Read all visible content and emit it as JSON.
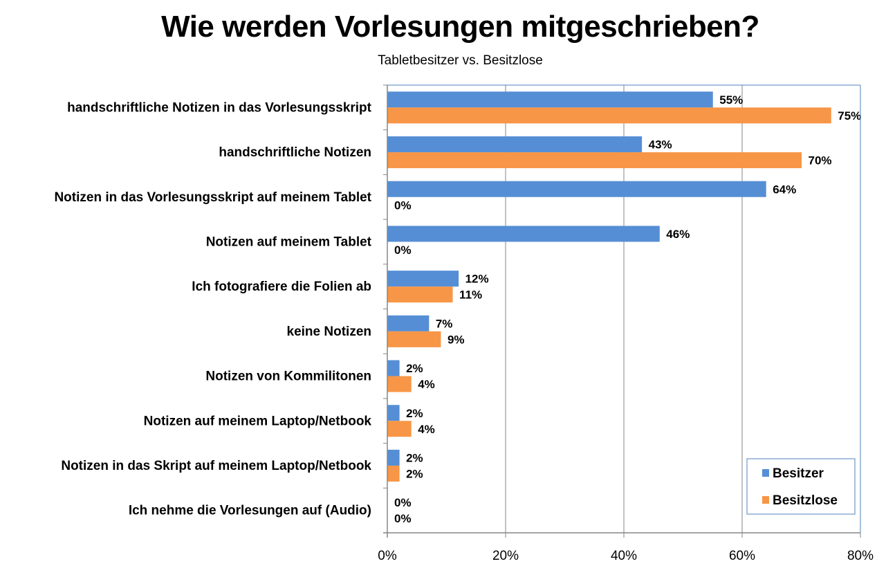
{
  "chart_data": {
    "type": "bar",
    "orientation": "horizontal",
    "title": "Wie werden Vorlesungen mitgeschrieben?",
    "subtitle": "Tabletbesitzer vs. Besitzlose",
    "xlabel": "",
    "ylabel": "",
    "xlim": [
      0,
      80
    ],
    "x_ticks": [
      "0%",
      "20%",
      "40%",
      "60%",
      "80%"
    ],
    "x_tick_values": [
      0,
      20,
      40,
      60,
      80
    ],
    "grid": true,
    "legend_position": "bottom-right",
    "categories": [
      "handschriftliche Notizen in das Vorlesungsskript",
      "handschriftliche Notizen",
      "Notizen in das Vorlesungsskript auf meinem Tablet",
      "Notizen auf meinem Tablet",
      "Ich fotografiere die Folien ab",
      "keine Notizen",
      "Notizen von Kommilitonen",
      "Notizen auf meinem Laptop/Netbook",
      "Notizen in das Skript auf meinem Laptop/Netbook",
      "Ich nehme die Vorlesungen auf (Audio)"
    ],
    "series": [
      {
        "name": "Besitzer",
        "color": "#558ED5",
        "values": [
          55,
          43,
          64,
          46,
          12,
          7,
          2,
          2,
          2,
          0
        ],
        "labels": [
          "55%",
          "43%",
          "64%",
          "46%",
          "12%",
          "7%",
          "2%",
          "2%",
          "2%",
          "0%"
        ]
      },
      {
        "name": "Besitzlose",
        "color": "#F79646",
        "values": [
          75,
          70,
          0,
          0,
          11,
          9,
          4,
          4,
          2,
          0
        ],
        "labels": [
          "75%",
          "70%",
          "0%",
          "0%",
          "11%",
          "9%",
          "4%",
          "4%",
          "2%",
          "0%"
        ]
      }
    ]
  },
  "colors": {
    "grid": "#868686",
    "plot_border": "#4F81BD",
    "legend_border": "#4F81BD"
  }
}
